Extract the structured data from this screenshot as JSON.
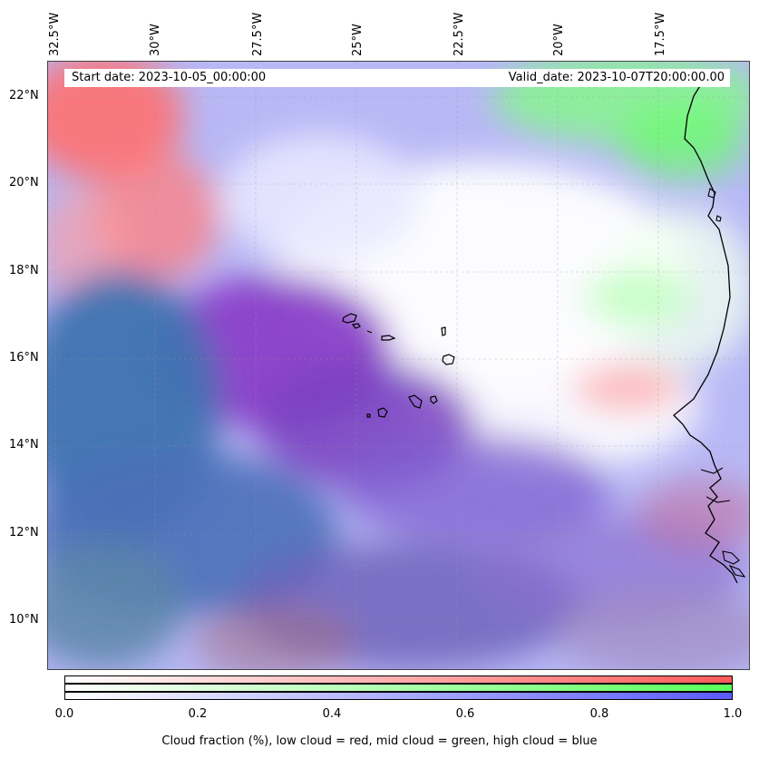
{
  "map": {
    "start_date": "Start date: 2023-10-05_00:00:00",
    "valid_date": "Valid_date: 2023-10-07T20:00:00.00",
    "lon_labels": [
      "32.5°W",
      "30°W",
      "27.5°W",
      "25°W",
      "22.5°W",
      "20°W",
      "17.5°W"
    ],
    "lat_labels": [
      "22°N",
      "20°N",
      "18°N",
      "16°N",
      "14°N",
      "12°N",
      "10°N"
    ],
    "gridlines": true,
    "coastline_color": "#000000",
    "layer_colors": {
      "low_cloud": "#ff5555",
      "mid_cloud": "#55ff55",
      "high_cloud": "#5555ff"
    }
  },
  "colorbar": {
    "ticks": [
      "0.0",
      "0.2",
      "0.4",
      "0.6",
      "0.8",
      "1.0"
    ],
    "range": [
      0.0,
      1.0
    ],
    "caption": "Cloud fraction (%), low cloud = red, mid cloud = green, high cloud = blue",
    "bars": [
      {
        "name": "low cloud",
        "color": "#ff5a5a"
      },
      {
        "name": "mid cloud",
        "color": "#5aff5a"
      },
      {
        "name": "high cloud",
        "color": "#5a5aff"
      }
    ]
  }
}
